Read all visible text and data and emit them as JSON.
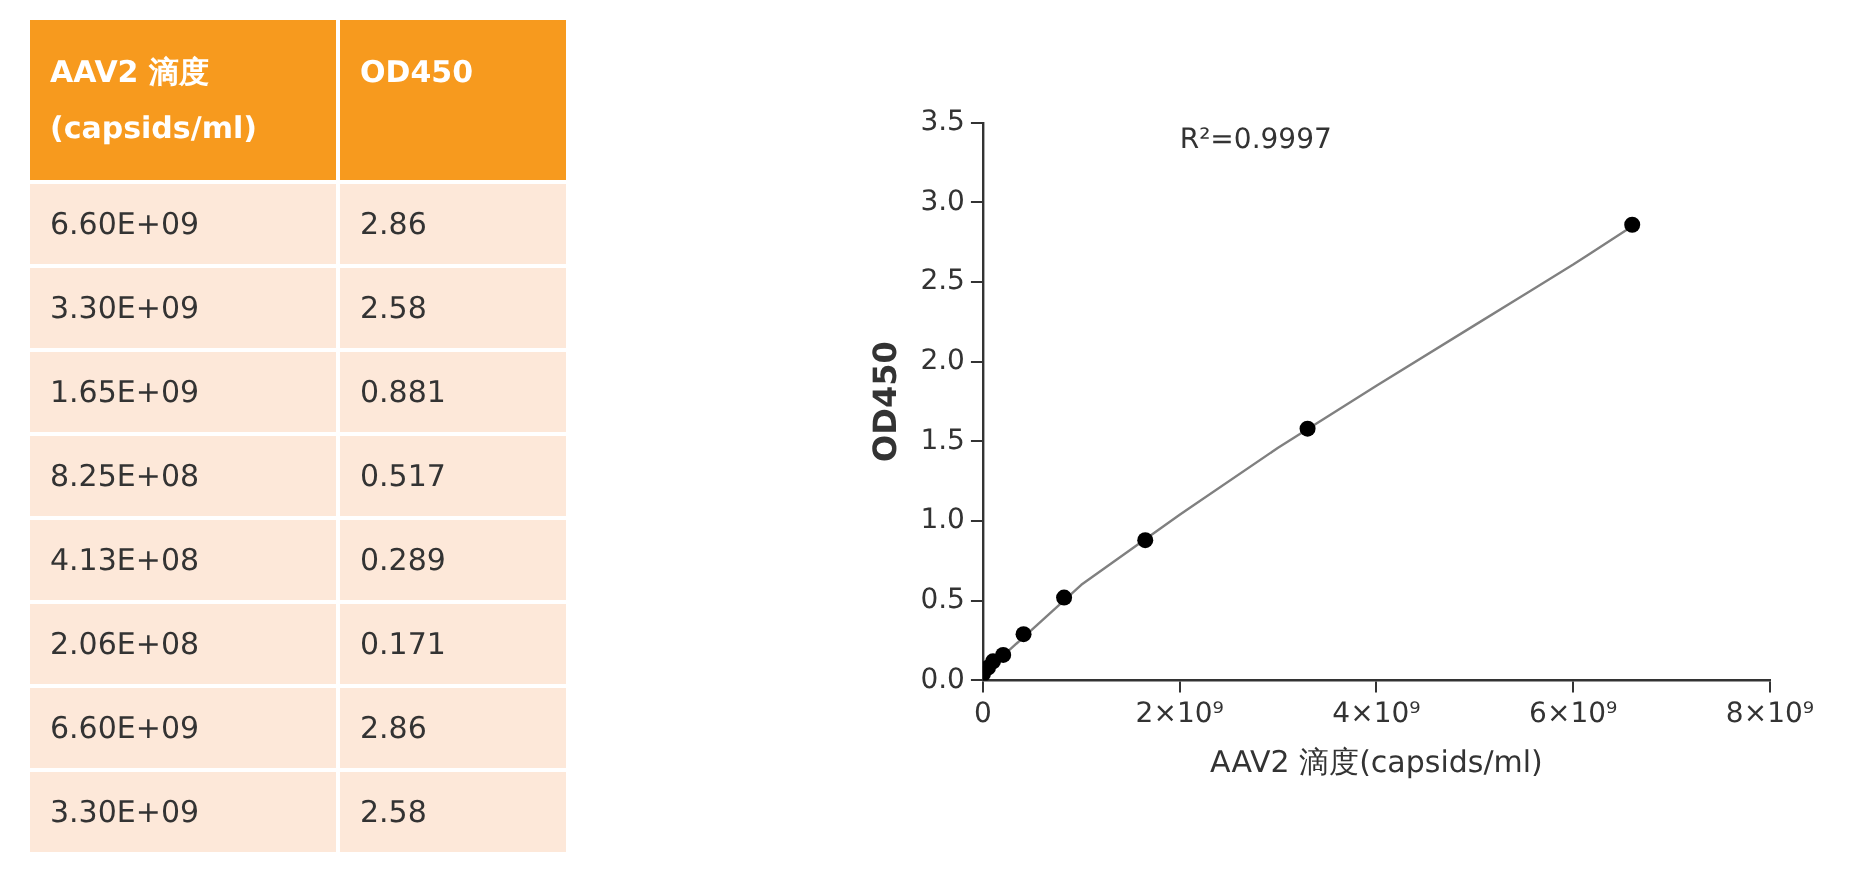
{
  "chart_data": [
    {
      "type": "other",
      "annotations": [
        "AAV2 滴度 (capsids/ml)",
        "OD450",
        "6.60E+09",
        "2.86",
        "3.30E+09",
        "2.58",
        "1.65E+09",
        "0.881",
        "8.25E+08",
        "0.517",
        "4.13E+08",
        "0.289",
        "2.06E+08",
        "0.171",
        "6.60E+09",
        "2.86",
        "3.30E+09",
        "2.58"
      ]
    },
    {
      "type": "scatter",
      "xlabel": "AAV2 滴度(capsids/ml)",
      "ylabel": "OD450",
      "annotations": [
        "R²=0.9997"
      ],
      "xlim": [
        0,
        8000000000
      ],
      "xticks": [
        0,
        {
          "value": 2000000000,
          "label": "2×10⁹"
        },
        {
          "value": 4000000000,
          "label": "4×10⁹"
        },
        {
          "value": 6000000000,
          "label": "6×10⁹"
        },
        {
          "value": 8000000000,
          "label": "8×10⁹"
        }
      ],
      "ylim": [
        0,
        3.5
      ],
      "yticks": [
        {
          "value": 0,
          "label": "0.0"
        },
        0.5,
        {
          "value": 1,
          "label": "1.0"
        },
        1.5,
        {
          "value": 2,
          "label": "2.0"
        },
        2.5,
        {
          "value": 3,
          "label": "3.0"
        },
        3.5
      ],
      "grid": false,
      "legend": false,
      "series": [
        {
          "type": "line",
          "color": "#808080",
          "marker": "none",
          "x": [
            0,
            1000000000,
            2000000000,
            3000000000,
            4000000000,
            5000000000,
            6000000000,
            6600000000
          ],
          "values": [
            0.04,
            0.6,
            1.04,
            1.46,
            1.85,
            2.23,
            2.61,
            2.85
          ]
        },
        {
          "type": "scatter",
          "color": "#000000",
          "marker": "circle",
          "x": [
            0,
            51600000,
            103000000,
            206000000,
            413000000,
            825000000,
            1650000000,
            3300000000,
            6600000000
          ],
          "values": [
            0.04,
            0.08,
            0.12,
            0.16,
            0.29,
            0.52,
            0.88,
            1.58,
            2.86
          ]
        }
      ]
    }
  ]
}
